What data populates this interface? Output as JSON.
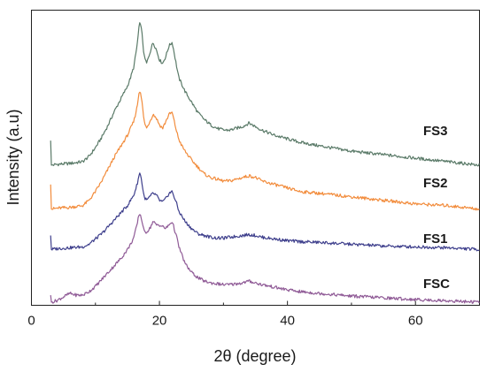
{
  "chart_data": {
    "type": "line",
    "title": "",
    "xlabel": "2θ (degree)",
    "ylabel": "Intensity (a.u)",
    "xlim": [
      0,
      70
    ],
    "ylim": [
      0,
      1
    ],
    "x_ticks": [
      0,
      20,
      40,
      60
    ],
    "y_ticks": [],
    "grid": false,
    "legend": "labels placed beside each curve on the right",
    "series": [
      {
        "name": "FS3",
        "color": "#5a7a68",
        "offset": 0.78,
        "x": [
          3,
          3.1,
          4,
          6,
          8,
          9,
          10,
          11,
          12,
          13,
          14,
          15,
          15.5,
          16,
          16.5,
          16.8,
          17,
          17.3,
          17.6,
          18,
          18.5,
          19,
          19.5,
          20,
          20.5,
          21,
          21.5,
          22,
          22.3,
          22.7,
          23,
          23.5,
          24,
          25,
          26,
          27,
          28,
          29,
          30,
          31,
          32,
          33,
          34,
          35,
          36,
          38,
          40,
          42,
          45,
          50,
          55,
          60,
          65,
          70
        ],
        "y": [
          0.14,
          0.0,
          0.005,
          0.01,
          0.02,
          0.05,
          0.1,
          0.16,
          0.23,
          0.31,
          0.38,
          0.45,
          0.5,
          0.56,
          0.68,
          0.78,
          0.82,
          0.74,
          0.62,
          0.58,
          0.64,
          0.7,
          0.66,
          0.6,
          0.58,
          0.62,
          0.68,
          0.7,
          0.64,
          0.56,
          0.5,
          0.46,
          0.42,
          0.36,
          0.3,
          0.26,
          0.23,
          0.21,
          0.2,
          0.2,
          0.21,
          0.22,
          0.24,
          0.22,
          0.2,
          0.17,
          0.15,
          0.13,
          0.11,
          0.08,
          0.06,
          0.04,
          0.02,
          0.0
        ]
      },
      {
        "name": "FS2",
        "color": "#f28c3c",
        "offset": 0.53,
        "x": [
          3,
          3.1,
          4,
          6,
          8,
          9,
          10,
          11,
          12,
          13,
          14,
          15,
          15.5,
          16,
          16.5,
          16.8,
          17,
          17.3,
          17.6,
          18,
          18.5,
          19,
          19.5,
          20,
          20.5,
          21,
          21.5,
          22,
          22.3,
          22.7,
          23,
          23.5,
          24,
          25,
          26,
          27,
          28,
          29,
          30,
          31,
          32,
          33,
          34,
          35,
          36,
          38,
          40,
          42,
          45,
          50,
          55,
          60,
          65,
          70
        ],
        "y": [
          0.14,
          0.0,
          0.005,
          0.01,
          0.02,
          0.05,
          0.1,
          0.16,
          0.23,
          0.3,
          0.36,
          0.42,
          0.46,
          0.5,
          0.58,
          0.66,
          0.68,
          0.6,
          0.5,
          0.46,
          0.5,
          0.54,
          0.52,
          0.48,
          0.46,
          0.5,
          0.54,
          0.55,
          0.5,
          0.44,
          0.4,
          0.36,
          0.33,
          0.28,
          0.24,
          0.2,
          0.18,
          0.17,
          0.16,
          0.16,
          0.17,
          0.18,
          0.19,
          0.18,
          0.16,
          0.14,
          0.12,
          0.1,
          0.09,
          0.07,
          0.05,
          0.03,
          0.02,
          0.0
        ]
      },
      {
        "name": "FS1",
        "color": "#3e3f8c",
        "offset": 0.3,
        "x": [
          3,
          3.1,
          4,
          6,
          8,
          9,
          10,
          11,
          12,
          13,
          14,
          15,
          15.5,
          16,
          16.5,
          16.8,
          17,
          17.3,
          17.6,
          18,
          18.5,
          19,
          19.5,
          20,
          20.5,
          21,
          21.5,
          22,
          22.3,
          22.7,
          23,
          23.5,
          24,
          25,
          26,
          27,
          28,
          29,
          30,
          31,
          32,
          33,
          34,
          35,
          36,
          38,
          40,
          42,
          45,
          50,
          55,
          60,
          65,
          70
        ],
        "y": [
          0.08,
          0.0,
          0.005,
          0.01,
          0.015,
          0.03,
          0.06,
          0.09,
          0.13,
          0.17,
          0.21,
          0.25,
          0.28,
          0.31,
          0.37,
          0.42,
          0.44,
          0.37,
          0.3,
          0.28,
          0.3,
          0.32,
          0.31,
          0.28,
          0.27,
          0.29,
          0.32,
          0.33,
          0.3,
          0.26,
          0.22,
          0.19,
          0.16,
          0.12,
          0.09,
          0.08,
          0.07,
          0.065,
          0.065,
          0.07,
          0.075,
          0.08,
          0.085,
          0.08,
          0.07,
          0.06,
          0.05,
          0.045,
          0.04,
          0.03,
          0.02,
          0.015,
          0.01,
          0.0
        ]
      },
      {
        "name": "FSC",
        "color": "#8f5a96",
        "offset": 0.0,
        "x": [
          3,
          3.1,
          4,
          5,
          6,
          7,
          8,
          9,
          10,
          11,
          12,
          13,
          14,
          15,
          15.5,
          16,
          16.5,
          16.8,
          17,
          17.3,
          17.6,
          18,
          18.5,
          19,
          19.5,
          20,
          20.5,
          21,
          21.5,
          22,
          22.3,
          22.7,
          23,
          23.5,
          24,
          25,
          26,
          27,
          28,
          29,
          30,
          31,
          32,
          33,
          34,
          35,
          36,
          38,
          40,
          42,
          45,
          50,
          55,
          60,
          65,
          70
        ],
        "y": [
          0.04,
          0.0,
          0.01,
          0.03,
          0.05,
          0.04,
          0.04,
          0.06,
          0.09,
          0.13,
          0.17,
          0.21,
          0.25,
          0.3,
          0.33,
          0.37,
          0.44,
          0.5,
          0.5,
          0.46,
          0.4,
          0.4,
          0.42,
          0.46,
          0.44,
          0.44,
          0.43,
          0.42,
          0.44,
          0.46,
          0.42,
          0.37,
          0.32,
          0.27,
          0.22,
          0.17,
          0.14,
          0.12,
          0.11,
          0.105,
          0.1,
          0.1,
          0.105,
          0.11,
          0.12,
          0.11,
          0.1,
          0.085,
          0.07,
          0.06,
          0.05,
          0.035,
          0.025,
          0.015,
          0.008,
          0.0
        ]
      }
    ]
  }
}
